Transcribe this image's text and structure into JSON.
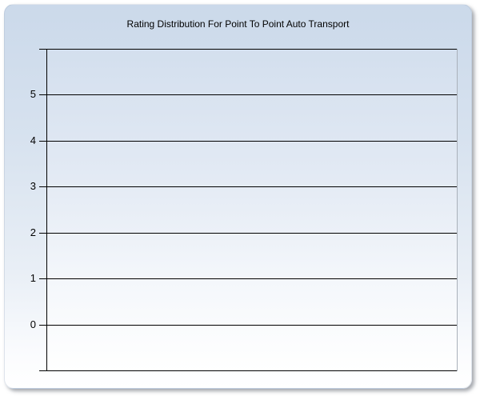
{
  "chart_data": {
    "type": "bar",
    "title": "Rating Distribution For Point To Point Auto Transport",
    "categories": [],
    "series": [],
    "values": [],
    "xlabel": "",
    "ylabel": "",
    "ylim": [
      -1,
      6
    ],
    "yticks": [
      0,
      1,
      2,
      3,
      4,
      5
    ],
    "grid": true,
    "legend": false
  },
  "colors": {
    "page_background": "#ffffff",
    "panel_gradient_top": "#cbd9ea",
    "panel_gradient_bottom": "#ffffff",
    "plot_gradient_top": "#d3dfee",
    "plot_gradient_bottom": "#ffffff",
    "gridline": "#000000",
    "axis_line": "#000000",
    "plot_right_border": "#aab1ba",
    "title_color": "#000000",
    "tick_label_color": "#000000"
  }
}
